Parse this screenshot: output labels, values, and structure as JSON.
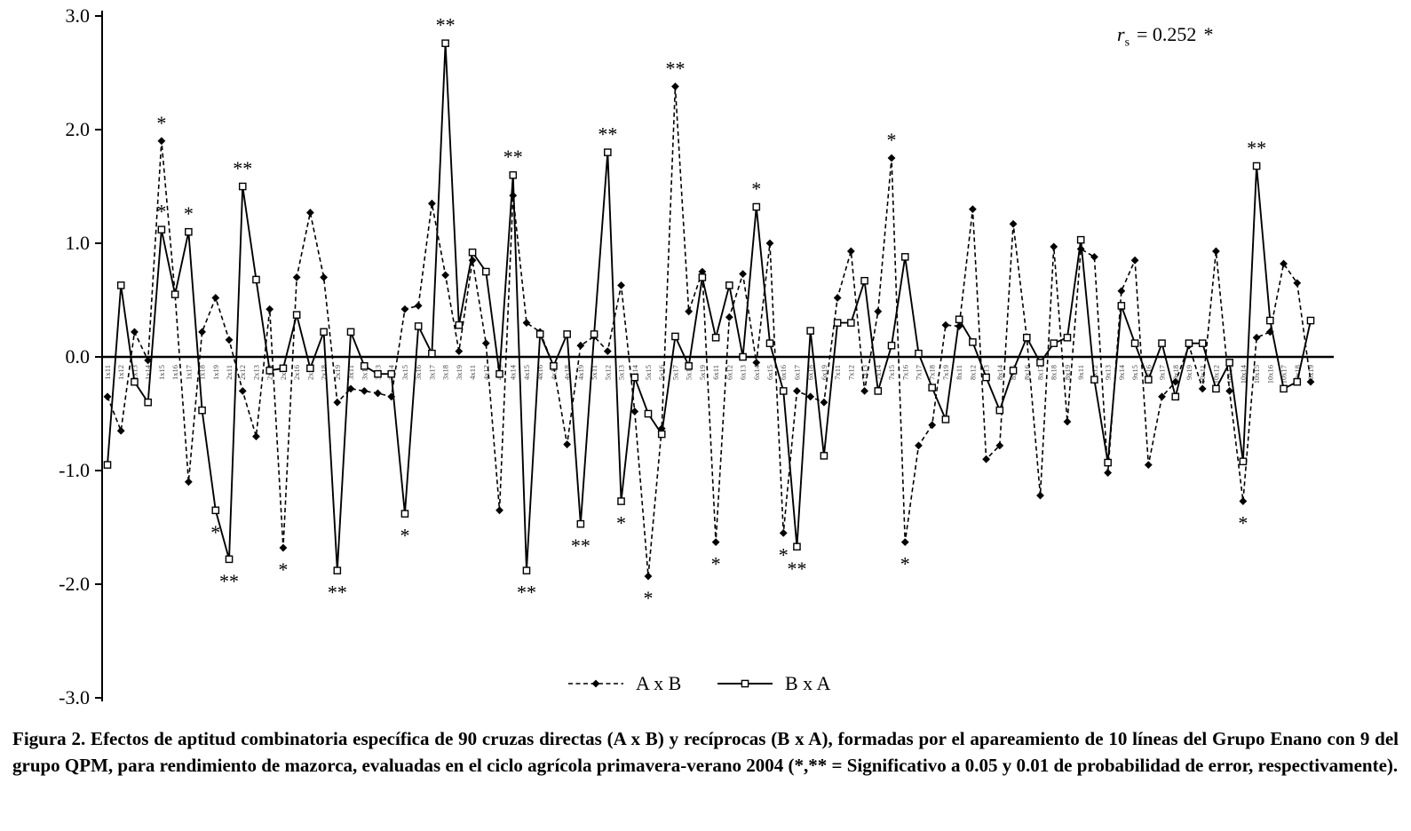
{
  "figure": {
    "stats_annotation": {
      "variable": "r",
      "subscript": "s",
      "value": "=  0.252",
      "significance": "*"
    },
    "caption": "Figura 2. Efectos de aptitud combinatoria específica de 90 cruzas directas (A x B) y recíprocas (B x A), formadas por el apareamiento de 10 líneas del Grupo Enano con 9 del grupo QPM, para rendimiento de mazorca, evaluadas en el ciclo agrícola primavera-verano 2004 (*,** = Significativo a 0.05 y 0.01 de probabilidad de error, respectivamente)."
  },
  "chart_data": {
    "type": "line",
    "title": "",
    "xlabel": "",
    "ylabel": "",
    "ylim": [
      -3.0,
      3.0
    ],
    "yticks": [
      "3.0",
      "2.0",
      "1.0",
      "0.0",
      "-1.0",
      "-2.0",
      "-3.0"
    ],
    "grid": false,
    "legend_position": "bottom-center",
    "categories": [
      "1x11",
      "1x12",
      "1x13",
      "1x14",
      "1x15",
      "1x16",
      "1x17",
      "1x18",
      "1x19",
      "2x11",
      "2x12",
      "2x13",
      "2x14",
      "2x15",
      "2x16",
      "2x17",
      "2x18",
      "2x19",
      "3x11",
      "3x12",
      "3x13",
      "3x14",
      "3x15",
      "3x16",
      "3x17",
      "3x18",
      "3x19",
      "4x11",
      "4x12",
      "4x13",
      "4x14",
      "4x15",
      "4x16",
      "4x17",
      "4x18",
      "4x19",
      "5x11",
      "5x12",
      "5x13",
      "5x14",
      "5x15",
      "5x16",
      "5x17",
      "5x18",
      "5x19",
      "6x11",
      "6x12",
      "6x13",
      "6x14",
      "6x15",
      "6x16",
      "6x17",
      "6x18",
      "6x19",
      "7x11",
      "7x12",
      "7x13",
      "7x14",
      "7x15",
      "7x16",
      "7x17",
      "7x18",
      "7x19",
      "8x11",
      "8x12",
      "8x13",
      "8x14",
      "8x15",
      "8x16",
      "8x17",
      "8x18",
      "8x19",
      "9x11",
      "9x12",
      "9x13",
      "9x14",
      "9x15",
      "9x16",
      "9x17",
      "9x18",
      "9x19",
      "10x11",
      "10x12",
      "10x13",
      "10x14",
      "10x15",
      "10x16",
      "10x17",
      "10x18",
      "10x19"
    ],
    "series": [
      {
        "name": "A x B",
        "marker": "diamond",
        "line": "dashed",
        "values": [
          -0.35,
          -0.65,
          0.22,
          -0.03,
          1.9,
          0.55,
          -1.1,
          0.22,
          0.52,
          0.15,
          -0.3,
          -0.7,
          0.42,
          -1.68,
          0.7,
          1.27,
          0.7,
          -0.4,
          -0.28,
          -0.3,
          -0.32,
          -0.35,
          0.42,
          0.45,
          1.35,
          0.72,
          0.05,
          0.85,
          0.12,
          -1.35,
          1.42,
          0.3,
          0.22,
          -0.08,
          -0.77,
          0.1,
          0.18,
          0.05,
          0.63,
          -0.48,
          -1.93,
          -0.63,
          2.38,
          0.4,
          0.75,
          -1.63,
          0.35,
          0.73,
          -0.05,
          1.0,
          -1.55,
          -0.3,
          -0.35,
          -0.4,
          0.52,
          0.93,
          -0.3,
          0.4,
          1.75,
          -1.63,
          -0.78,
          -0.6,
          0.28,
          0.27,
          1.3,
          -0.9,
          -0.78,
          1.17,
          0.17,
          -1.22,
          0.97,
          -0.57,
          0.95,
          0.88,
          -1.02,
          0.58,
          0.85,
          -0.95,
          -0.35,
          -0.22,
          0.1,
          -0.28,
          0.93,
          -0.3,
          -1.27,
          0.17,
          0.22,
          0.82,
          0.65,
          -0.22
        ]
      },
      {
        "name": "B x A",
        "marker": "square-open",
        "line": "solid",
        "values": [
          -0.95,
          0.63,
          -0.22,
          -0.4,
          1.12,
          0.55,
          1.1,
          -0.47,
          -1.35,
          -1.78,
          1.5,
          0.68,
          -0.12,
          -0.1,
          0.37,
          -0.1,
          0.22,
          -1.88,
          0.22,
          -0.08,
          -0.15,
          -0.15,
          -1.38,
          0.27,
          0.03,
          2.76,
          0.28,
          0.92,
          0.75,
          -0.15,
          1.6,
          -1.88,
          0.2,
          -0.08,
          0.2,
          -1.47,
          0.2,
          1.8,
          -1.27,
          -0.18,
          -0.5,
          -0.68,
          0.18,
          -0.08,
          0.7,
          0.17,
          0.63,
          0.0,
          1.32,
          0.12,
          -0.3,
          -1.67,
          0.23,
          -0.87,
          0.3,
          0.3,
          0.67,
          -0.3,
          0.1,
          0.88,
          0.03,
          -0.27,
          -0.55,
          0.33,
          0.13,
          -0.18,
          -0.47,
          -0.12,
          0.17,
          -0.05,
          0.12,
          0.17,
          1.03,
          -0.2,
          -0.93,
          0.45,
          0.12,
          -0.2,
          0.12,
          -0.35,
          0.12,
          0.12,
          -0.28,
          -0.05,
          -0.92,
          1.68,
          0.32,
          -0.28,
          -0.22,
          0.32
        ]
      }
    ],
    "significance_markers": [
      {
        "category": "1x15",
        "series": "A x B",
        "label": "*"
      },
      {
        "category": "1x15",
        "series": "B x A",
        "label": "*"
      },
      {
        "category": "1x17",
        "series": "B x A",
        "label": "*"
      },
      {
        "category": "1x19",
        "series": "B x A",
        "label": "*"
      },
      {
        "category": "2x11",
        "series": "B x A",
        "label": "**"
      },
      {
        "category": "2x12",
        "series": "B x A",
        "label": "**"
      },
      {
        "category": "2x15",
        "series": "A x B",
        "label": "*"
      },
      {
        "category": "2x19",
        "series": "B x A",
        "label": "**"
      },
      {
        "category": "3x15",
        "series": "B x A",
        "label": "*"
      },
      {
        "category": "3x18",
        "series": "B x A",
        "label": "**"
      },
      {
        "category": "4x14",
        "series": "B x A",
        "label": "**"
      },
      {
        "category": "4x15",
        "series": "B x A",
        "label": "**"
      },
      {
        "category": "4x19",
        "series": "B x A",
        "label": "**"
      },
      {
        "category": "5x12",
        "series": "B x A",
        "label": "**"
      },
      {
        "category": "5x13",
        "series": "B x A",
        "label": "*"
      },
      {
        "category": "5x15",
        "series": "A x B",
        "label": "*"
      },
      {
        "category": "5x17",
        "series": "A x B",
        "label": "**"
      },
      {
        "category": "6x11",
        "series": "A x B",
        "label": "*"
      },
      {
        "category": "6x14",
        "series": "B x A",
        "label": "*"
      },
      {
        "category": "6x16",
        "series": "A x B",
        "label": "*"
      },
      {
        "category": "6x17",
        "series": "B x A",
        "label": "**"
      },
      {
        "category": "7x15",
        "series": "A x B",
        "label": "*"
      },
      {
        "category": "7x16",
        "series": "A x B",
        "label": "*"
      },
      {
        "category": "10x14",
        "series": "A x B",
        "label": "*"
      },
      {
        "category": "10x15",
        "series": "B x A",
        "label": "**"
      }
    ]
  }
}
